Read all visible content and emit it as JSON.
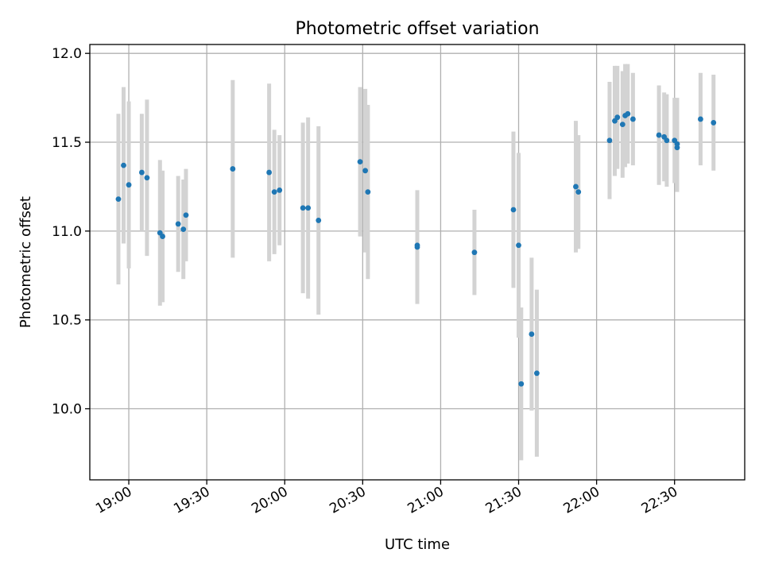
{
  "chart_data": {
    "type": "scatter",
    "title": "Photometric offset variation",
    "xlabel": "UTC time",
    "ylabel": "Photometric offset",
    "x_ticks": [
      "19:00",
      "19:30",
      "20:00",
      "20:30",
      "21:00",
      "21:30",
      "22:00",
      "22:30"
    ],
    "y_ticks": [
      "10.0",
      "10.5",
      "11.0",
      "11.5",
      "12.0"
    ],
    "xlim": [
      "18:45",
      "22:57"
    ],
    "ylim": [
      9.6,
      12.05
    ],
    "grid": true,
    "colors": {
      "points": "#1f77b4",
      "errorbars": "#d3d3d3"
    },
    "series": [
      {
        "x": [
          "18:56",
          "18:58",
          "19:00",
          "19:05",
          "19:07",
          "19:12",
          "19:13",
          "19:19",
          "19:21",
          "19:22",
          "19:40",
          "19:54",
          "19:56",
          "19:58",
          "20:07",
          "20:09",
          "20:13",
          "20:29",
          "20:31",
          "20:32",
          "20:51",
          "20:51",
          "21:13",
          "21:28",
          "21:30",
          "21:31",
          "21:35",
          "21:37",
          "21:52",
          "21:53",
          "22:05",
          "22:07",
          "22:08",
          "22:10",
          "22:11",
          "22:12",
          "22:14",
          "22:24",
          "22:26",
          "22:27",
          "22:30",
          "22:31",
          "22:31",
          "22:40",
          "22:45"
        ],
        "y": [
          11.18,
          11.37,
          11.26,
          11.33,
          11.3,
          10.99,
          10.97,
          11.04,
          11.01,
          11.09,
          11.35,
          11.33,
          11.22,
          11.23,
          11.13,
          11.13,
          11.06,
          11.39,
          11.34,
          11.22,
          10.91,
          10.92,
          10.88,
          11.12,
          10.92,
          10.14,
          10.42,
          10.2,
          11.25,
          11.22,
          11.51,
          11.62,
          11.64,
          11.6,
          11.65,
          11.66,
          11.63,
          11.54,
          11.53,
          11.51,
          11.51,
          11.49,
          11.47,
          11.63,
          11.61
        ],
        "error": [
          0.48,
          0.44,
          0.47,
          0.33,
          0.44,
          0.41,
          0.37,
          0.27,
          0.28,
          0.26,
          0.5,
          0.5,
          0.35,
          0.31,
          0.48,
          0.51,
          0.53,
          0.42,
          0.46,
          0.49,
          0.32,
          0.3,
          0.24,
          0.44,
          0.52,
          0.43,
          0.43,
          0.47,
          0.37,
          0.32,
          0.33,
          0.31,
          0.29,
          0.3,
          0.29,
          0.28,
          0.26,
          0.28,
          0.25,
          0.26,
          0.24,
          0.26,
          0.25,
          0.26,
          0.27
        ]
      }
    ]
  }
}
